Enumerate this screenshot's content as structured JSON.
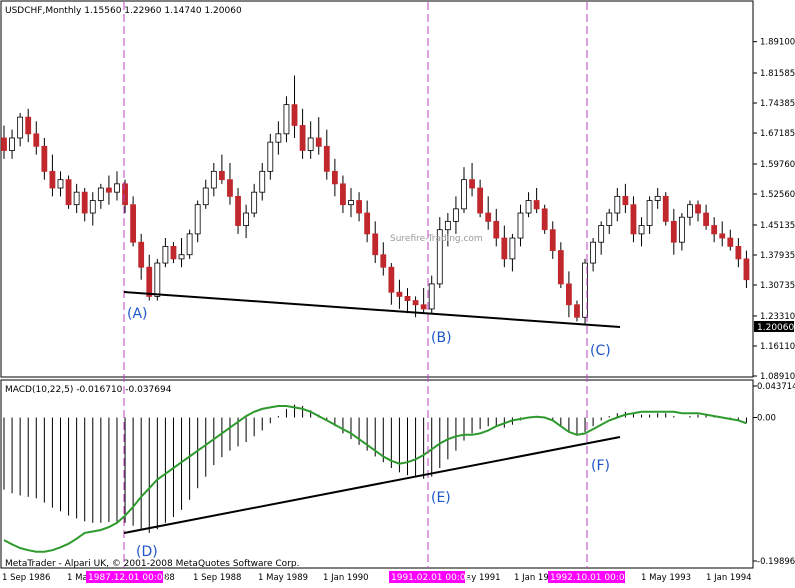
{
  "main_header": "USDCHF,Monthly  1.15560 1.22960 1.14740 1.20060",
  "macd_header": "MACD(10,22,5) -0.016710 -0.037694",
  "watermark": "Surefire-Trading.com",
  "copyright": "MetaTrader - Alpari UK, © 2001-2008 MetaQuotes Software Corp.",
  "price_ticks": [
    "1.89100",
    "1.81585",
    "1.74385",
    "1.67185",
    "1.59760",
    "1.52560",
    "1.45135",
    "1.37935",
    "1.30735",
    "1.23310",
    "1.16110",
    "1.08910"
  ],
  "current_price": "1.20060",
  "macd_ticks": [
    "0.043714",
    "0.00",
    "-0.19896"
  ],
  "time_labels": [
    "1 Sep 1986",
    "1 Ma",
    "88",
    "1 Sep 1988",
    "1 May 1989",
    "1 Jan 1990",
    "ay 1991",
    "1 Jan 19",
    "1 May 1993",
    "1 Jan 1994"
  ],
  "highlighted_dates": [
    "1987.12.01 00:00",
    "1991.02.01 00:00",
    "1992.10.01 00:00"
  ],
  "markers": [
    "(A)",
    "(B)",
    "(C)",
    "(D)",
    "(E)",
    "(F)"
  ],
  "colors": {
    "bull": "#ffffff",
    "bear": "#c0282d",
    "wick": "#000000",
    "signal": "#2e9a2e",
    "divider": "#c040c0",
    "highlight": "#ff00ff",
    "marker": "#1f57c8"
  },
  "chart_data": [
    {
      "type": "candlestick",
      "title": "USDCHF,Monthly",
      "ylim": [
        1.0891,
        1.931
      ],
      "candles": [
        [
          1.66,
          1.69,
          1.61,
          1.63
        ],
        [
          1.63,
          1.68,
          1.61,
          1.66
        ],
        [
          1.66,
          1.72,
          1.64,
          1.71
        ],
        [
          1.71,
          1.73,
          1.65,
          1.67
        ],
        [
          1.67,
          1.7,
          1.62,
          1.64
        ],
        [
          1.64,
          1.66,
          1.56,
          1.58
        ],
        [
          1.58,
          1.62,
          1.52,
          1.54
        ],
        [
          1.54,
          1.58,
          1.52,
          1.56
        ],
        [
          1.56,
          1.57,
          1.49,
          1.5
        ],
        [
          1.5,
          1.55,
          1.48,
          1.53
        ],
        [
          1.53,
          1.54,
          1.46,
          1.48
        ],
        [
          1.48,
          1.53,
          1.45,
          1.51
        ],
        [
          1.51,
          1.55,
          1.49,
          1.54
        ],
        [
          1.54,
          1.57,
          1.5,
          1.53
        ],
        [
          1.53,
          1.58,
          1.51,
          1.55
        ],
        [
          1.55,
          1.56,
          1.48,
          1.5
        ],
        [
          1.5,
          1.52,
          1.4,
          1.41
        ],
        [
          1.41,
          1.43,
          1.32,
          1.35
        ],
        [
          1.35,
          1.38,
          1.27,
          1.28
        ],
        [
          1.28,
          1.37,
          1.27,
          1.36
        ],
        [
          1.36,
          1.42,
          1.35,
          1.4
        ],
        [
          1.4,
          1.41,
          1.36,
          1.37
        ],
        [
          1.37,
          1.42,
          1.35,
          1.38
        ],
        [
          1.38,
          1.44,
          1.37,
          1.43
        ],
        [
          1.43,
          1.51,
          1.41,
          1.5
        ],
        [
          1.5,
          1.56,
          1.49,
          1.54
        ],
        [
          1.54,
          1.6,
          1.52,
          1.58
        ],
        [
          1.58,
          1.62,
          1.55,
          1.56
        ],
        [
          1.56,
          1.6,
          1.5,
          1.52
        ],
        [
          1.52,
          1.54,
          1.43,
          1.45
        ],
        [
          1.45,
          1.5,
          1.42,
          1.48
        ],
        [
          1.48,
          1.55,
          1.47,
          1.53
        ],
        [
          1.53,
          1.6,
          1.51,
          1.58
        ],
        [
          1.58,
          1.67,
          1.56,
          1.65
        ],
        [
          1.65,
          1.7,
          1.62,
          1.67
        ],
        [
          1.67,
          1.76,
          1.65,
          1.74
        ],
        [
          1.74,
          1.81,
          1.66,
          1.69
        ],
        [
          1.69,
          1.73,
          1.61,
          1.63
        ],
        [
          1.63,
          1.7,
          1.61,
          1.66
        ],
        [
          1.66,
          1.71,
          1.62,
          1.64
        ],
        [
          1.64,
          1.68,
          1.56,
          1.58
        ],
        [
          1.58,
          1.61,
          1.52,
          1.55
        ],
        [
          1.55,
          1.57,
          1.48,
          1.5
        ],
        [
          1.5,
          1.54,
          1.47,
          1.51
        ],
        [
          1.51,
          1.53,
          1.46,
          1.48
        ],
        [
          1.48,
          1.51,
          1.41,
          1.43
        ],
        [
          1.43,
          1.46,
          1.36,
          1.38
        ],
        [
          1.38,
          1.41,
          1.33,
          1.35
        ],
        [
          1.35,
          1.36,
          1.26,
          1.29
        ],
        [
          1.29,
          1.32,
          1.25,
          1.28
        ],
        [
          1.28,
          1.3,
          1.24,
          1.27
        ],
        [
          1.27,
          1.28,
          1.23,
          1.26
        ],
        [
          1.26,
          1.3,
          1.24,
          1.25
        ],
        [
          1.25,
          1.33,
          1.24,
          1.31
        ],
        [
          1.31,
          1.47,
          1.3,
          1.44
        ],
        [
          1.44,
          1.48,
          1.4,
          1.46
        ],
        [
          1.46,
          1.52,
          1.43,
          1.49
        ],
        [
          1.49,
          1.59,
          1.48,
          1.56
        ],
        [
          1.56,
          1.6,
          1.52,
          1.54
        ],
        [
          1.54,
          1.56,
          1.47,
          1.48
        ],
        [
          1.48,
          1.52,
          1.44,
          1.46
        ],
        [
          1.46,
          1.49,
          1.4,
          1.42
        ],
        [
          1.42,
          1.45,
          1.35,
          1.37
        ],
        [
          1.37,
          1.43,
          1.34,
          1.42
        ],
        [
          1.42,
          1.5,
          1.4,
          1.48
        ],
        [
          1.48,
          1.53,
          1.47,
          1.51
        ],
        [
          1.51,
          1.54,
          1.48,
          1.49
        ],
        [
          1.49,
          1.5,
          1.43,
          1.44
        ],
        [
          1.44,
          1.46,
          1.37,
          1.39
        ],
        [
          1.39,
          1.41,
          1.3,
          1.31
        ],
        [
          1.31,
          1.34,
          1.23,
          1.26
        ],
        [
          1.26,
          1.27,
          1.22,
          1.23
        ],
        [
          1.23,
          1.37,
          1.21,
          1.36
        ],
        [
          1.36,
          1.42,
          1.34,
          1.41
        ],
        [
          1.41,
          1.46,
          1.38,
          1.45
        ],
        [
          1.45,
          1.49,
          1.43,
          1.48
        ],
        [
          1.48,
          1.54,
          1.46,
          1.52
        ],
        [
          1.52,
          1.55,
          1.48,
          1.5
        ],
        [
          1.5,
          1.52,
          1.41,
          1.43
        ],
        [
          1.43,
          1.47,
          1.4,
          1.45
        ],
        [
          1.45,
          1.52,
          1.43,
          1.51
        ],
        [
          1.51,
          1.54,
          1.49,
          1.52
        ],
        [
          1.52,
          1.53,
          1.45,
          1.46
        ],
        [
          1.46,
          1.49,
          1.38,
          1.41
        ],
        [
          1.41,
          1.48,
          1.39,
          1.47
        ],
        [
          1.47,
          1.51,
          1.45,
          1.5
        ],
        [
          1.5,
          1.51,
          1.46,
          1.48
        ],
        [
          1.48,
          1.5,
          1.44,
          1.45
        ],
        [
          1.45,
          1.47,
          1.41,
          1.43
        ],
        [
          1.43,
          1.46,
          1.4,
          1.42
        ],
        [
          1.42,
          1.44,
          1.39,
          1.4
        ],
        [
          1.4,
          1.42,
          1.35,
          1.37
        ],
        [
          1.37,
          1.39,
          1.3,
          1.32
        ]
      ],
      "annotations": [
        {
          "label": "(A)",
          "price": 1.28
        },
        {
          "label": "(B)",
          "price": 1.23
        },
        {
          "label": "(C)",
          "price": 1.205
        }
      ]
    },
    {
      "type": "histogram+line",
      "title": "MACD(10,22,5)",
      "ylim": [
        -0.19896,
        0.043714
      ],
      "macd": [
        -0.1,
        -0.105,
        -0.108,
        -0.11,
        -0.112,
        -0.118,
        -0.125,
        -0.13,
        -0.136,
        -0.14,
        -0.144,
        -0.146,
        -0.146,
        -0.145,
        -0.144,
        -0.146,
        -0.15,
        -0.156,
        -0.16,
        -0.155,
        -0.146,
        -0.138,
        -0.128,
        -0.114,
        -0.098,
        -0.082,
        -0.066,
        -0.055,
        -0.046,
        -0.04,
        -0.034,
        -0.026,
        -0.018,
        -0.008,
        0.002,
        0.012,
        0.018,
        0.016,
        0.01,
        0.004,
        -0.004,
        -0.012,
        -0.022,
        -0.03,
        -0.038,
        -0.046,
        -0.054,
        -0.062,
        -0.07,
        -0.076,
        -0.08,
        -0.083,
        -0.085,
        -0.082,
        -0.07,
        -0.058,
        -0.046,
        -0.032,
        -0.022,
        -0.016,
        -0.012,
        -0.012,
        -0.014,
        -0.01,
        -0.004,
        0.0,
        0.002,
        0.0,
        -0.004,
        -0.012,
        -0.02,
        -0.024,
        -0.02,
        -0.012,
        -0.004,
        0.002,
        0.006,
        0.008,
        0.006,
        0.004,
        0.004,
        0.006,
        0.006,
        0.002,
        0.0,
        0.002,
        0.004,
        0.004,
        0.002,
        0.0,
        -0.002,
        -0.004,
        -0.008
      ],
      "signal": [
        -0.17,
        -0.176,
        -0.181,
        -0.184,
        -0.186,
        -0.186,
        -0.184,
        -0.18,
        -0.175,
        -0.168,
        -0.16,
        -0.158,
        -0.156,
        -0.152,
        -0.146,
        -0.136,
        -0.124,
        -0.11,
        -0.098,
        -0.086,
        -0.078,
        -0.07,
        -0.062,
        -0.054,
        -0.046,
        -0.038,
        -0.03,
        -0.022,
        -0.014,
        -0.006,
        0.002,
        0.008,
        0.012,
        0.014,
        0.016,
        0.016,
        0.014,
        0.012,
        0.008,
        0.002,
        -0.004,
        -0.01,
        -0.016,
        -0.022,
        -0.03,
        -0.038,
        -0.046,
        -0.054,
        -0.06,
        -0.064,
        -0.062,
        -0.058,
        -0.052,
        -0.044,
        -0.036,
        -0.03,
        -0.026,
        -0.024,
        -0.024,
        -0.022,
        -0.018,
        -0.012,
        -0.008,
        -0.004,
        -0.002,
        0.0,
        0.001,
        0.0,
        -0.004,
        -0.012,
        -0.02,
        -0.024,
        -0.022,
        -0.016,
        -0.01,
        -0.004,
        0.0,
        0.004,
        0.006,
        0.008,
        0.008,
        0.008,
        0.008,
        0.008,
        0.006,
        0.006,
        0.006,
        0.004,
        0.002,
        0.0,
        -0.002,
        -0.004,
        -0.008
      ],
      "annotations": [
        {
          "label": "(D)",
          "value": -0.123
        },
        {
          "label": "(E)",
          "value": -0.062
        },
        {
          "label": "(F)",
          "value": -0.024
        }
      ]
    }
  ]
}
